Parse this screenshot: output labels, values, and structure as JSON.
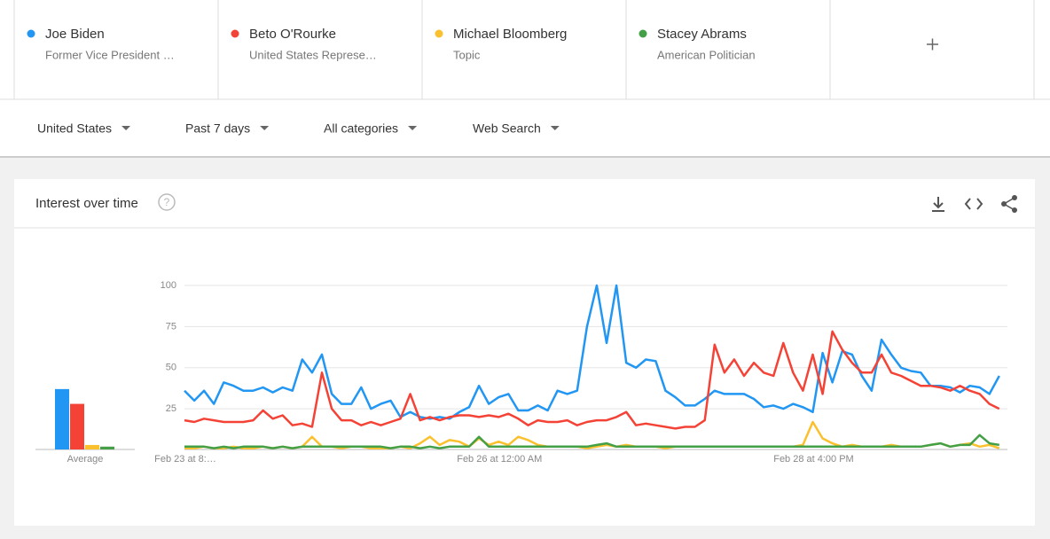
{
  "terms": [
    {
      "subtitle": "Former Vice President …"
    },
    {
      "subtitle": "United States Represe…"
    },
    {
      "subtitle": "Topic"
    },
    {
      "subtitle": "American Politician"
    }
  ],
  "filters": [
    "United States",
    "Past 7 days",
    "All categories",
    "Web Search"
  ],
  "card_title": "Interest over time",
  "chart_data": [
    {
      "type": "line",
      "ylim": [
        0,
        100
      ],
      "yticks": [
        25,
        50,
        75,
        100
      ],
      "grid": true,
      "categories": [
        "Feb 23 at 8:…",
        null,
        null,
        null,
        null,
        null,
        null,
        null,
        null,
        null,
        null,
        null,
        null,
        null,
        null,
        null,
        null,
        null,
        null,
        null,
        null,
        null,
        null,
        null,
        null,
        null,
        null,
        null,
        null,
        null,
        null,
        null,
        "Feb 26 at 12:00 AM",
        null,
        null,
        null,
        null,
        null,
        null,
        null,
        null,
        null,
        null,
        null,
        null,
        null,
        null,
        null,
        null,
        null,
        null,
        null,
        null,
        null,
        null,
        null,
        null,
        null,
        null,
        null,
        null,
        null,
        null,
        null,
        "Feb 28 at 4:00 PM",
        null,
        null,
        null,
        null,
        null,
        null,
        null,
        null,
        null,
        null,
        null,
        null,
        null,
        null,
        null,
        null,
        null,
        null,
        null
      ],
      "series": [
        {
          "name": "Joe Biden",
          "color": "#2196f3",
          "values": [
            36,
            30,
            36,
            28,
            41,
            39,
            36,
            36,
            38,
            35,
            38,
            36,
            55,
            47,
            58,
            34,
            28,
            28,
            38,
            25,
            28,
            30,
            20,
            23,
            20,
            19,
            20,
            19,
            23,
            26,
            39,
            28,
            32,
            34,
            24,
            24,
            27,
            24,
            36,
            34,
            36,
            75,
            100,
            65,
            100,
            53,
            50,
            55,
            54,
            36,
            32,
            27,
            27,
            31,
            36,
            34,
            34,
            34,
            31,
            26,
            27,
            25,
            28,
            26,
            23,
            59,
            41,
            60,
            58,
            45,
            36,
            67,
            58,
            50,
            48,
            47,
            39,
            39,
            38,
            35,
            39,
            38,
            34,
            45
          ]
        },
        {
          "name": "Beto O'Rourke",
          "color": "#f44336",
          "values": [
            18,
            17,
            19,
            18,
            17,
            17,
            17,
            18,
            24,
            19,
            21,
            15,
            16,
            14,
            47,
            25,
            18,
            18,
            15,
            17,
            15,
            17,
            19,
            34,
            18,
            20,
            18,
            20,
            21,
            21,
            20,
            21,
            20,
            22,
            19,
            15,
            18,
            17,
            17,
            18,
            15,
            17,
            18,
            18,
            20,
            23,
            15,
            16,
            15,
            14,
            13,
            14,
            14,
            18,
            64,
            47,
            55,
            45,
            53,
            47,
            45,
            65,
            47,
            36,
            58,
            34,
            72,
            61,
            53,
            47,
            47,
            58,
            47,
            45,
            42,
            39,
            39,
            38,
            36,
            39,
            36,
            34,
            28,
            25
          ]
        },
        {
          "name": "Michael Bloomberg",
          "color": "#fbc02d",
          "values": [
            1,
            1,
            2,
            1,
            1,
            2,
            1,
            1,
            2,
            1,
            2,
            1,
            2,
            8,
            2,
            2,
            1,
            2,
            2,
            1,
            1,
            1,
            2,
            1,
            4,
            8,
            3,
            6,
            5,
            2,
            7,
            3,
            5,
            3,
            8,
            6,
            3,
            2,
            2,
            2,
            2,
            1,
            2,
            3,
            2,
            3,
            2,
            2,
            2,
            1,
            2,
            2,
            2,
            2,
            2,
            2,
            2,
            2,
            2,
            2,
            2,
            2,
            2,
            3,
            17,
            7,
            4,
            2,
            3,
            2,
            2,
            2,
            3,
            2,
            2,
            2,
            3,
            4,
            2,
            3,
            4,
            2,
            3,
            1
          ]
        },
        {
          "name": "Stacey Abrams",
          "color": "#43a047",
          "values": [
            2,
            2,
            2,
            1,
            2,
            1,
            2,
            2,
            2,
            1,
            2,
            1,
            2,
            2,
            2,
            2,
            2,
            2,
            2,
            2,
            2,
            1,
            2,
            2,
            1,
            2,
            1,
            2,
            2,
            2,
            8,
            2,
            2,
            2,
            2,
            2,
            2,
            2,
            2,
            2,
            2,
            2,
            3,
            4,
            2,
            2,
            2,
            2,
            2,
            2,
            2,
            2,
            2,
            2,
            2,
            2,
            2,
            2,
            2,
            2,
            2,
            2,
            2,
            2,
            2,
            2,
            2,
            2,
            2,
            2,
            2,
            2,
            2,
            2,
            2,
            2,
            3,
            4,
            2,
            3,
            3,
            9,
            4,
            3
          ]
        }
      ]
    },
    {
      "type": "bar",
      "x_label": "Average",
      "values": [
        37,
        28,
        3,
        2
      ]
    }
  ]
}
